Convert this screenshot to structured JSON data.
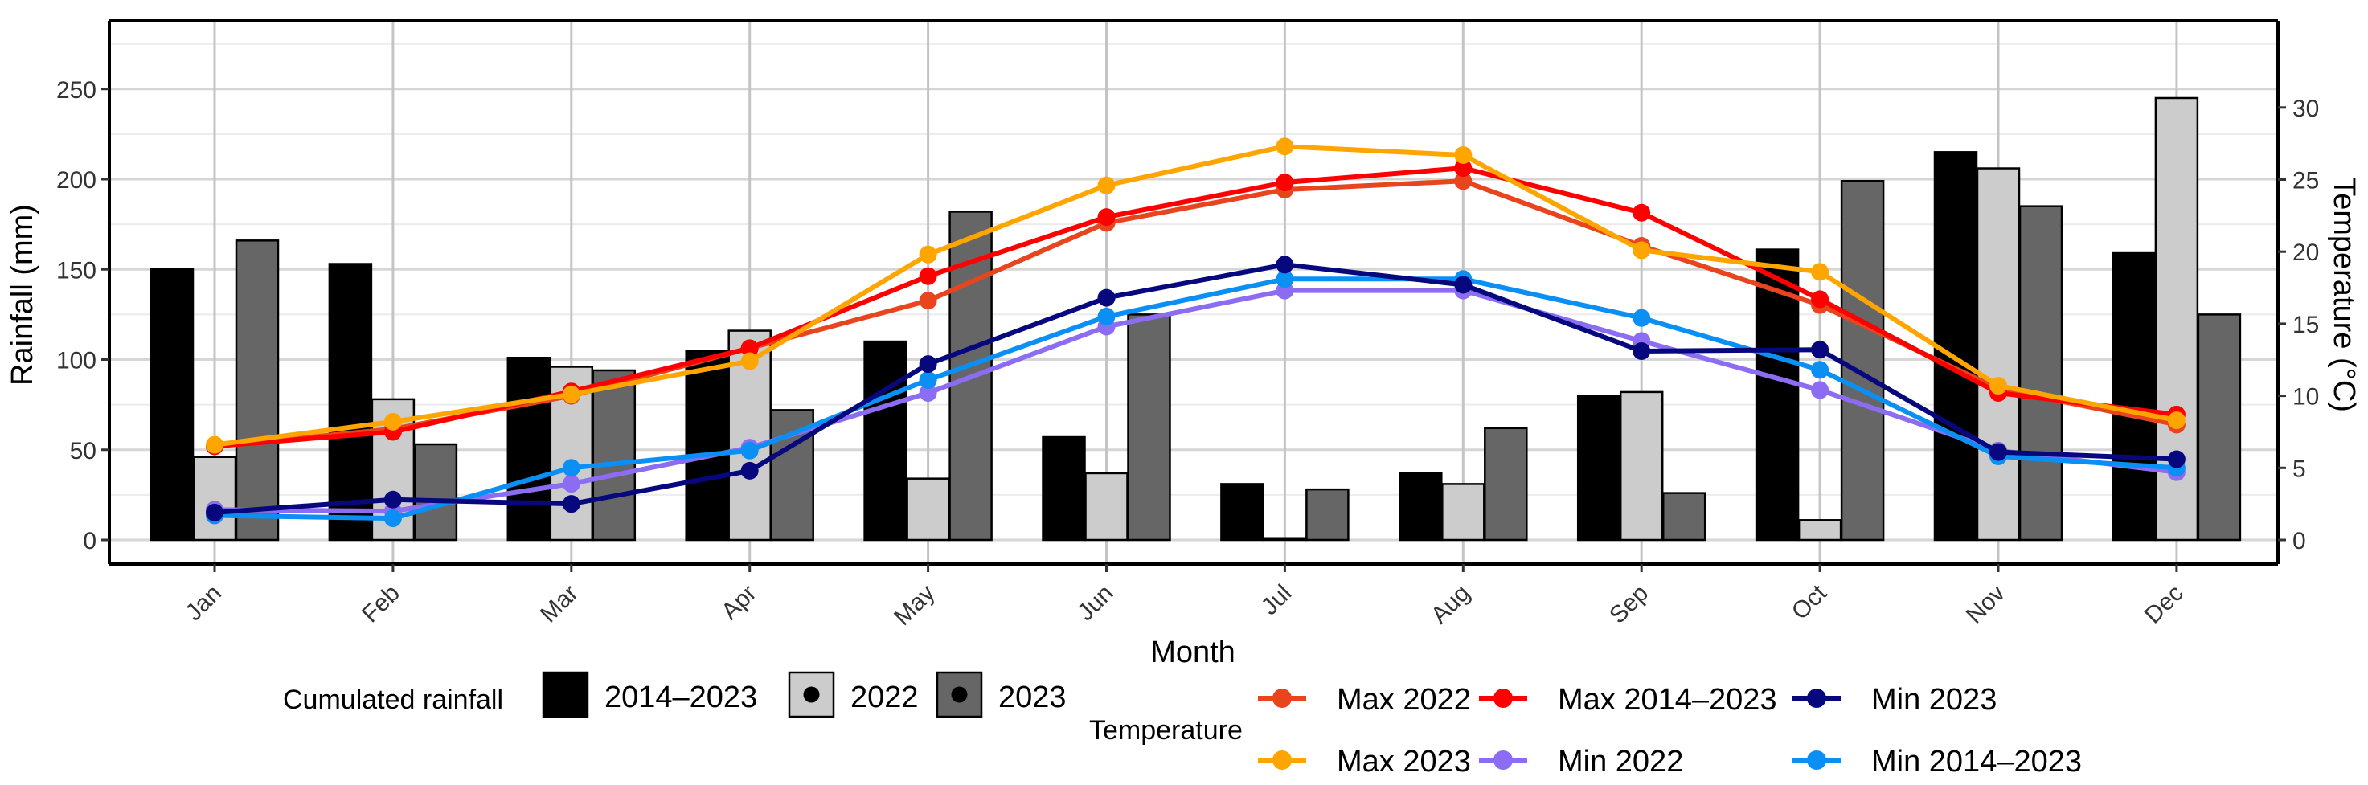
{
  "chart_data": {
    "type": "bar",
    "title": "",
    "xlabel": "Month",
    "ylabel": "Rainfall (mm)",
    "y2label": "Temperature (°C)",
    "categories": [
      "Jan",
      "Feb",
      "Mar",
      "Apr",
      "May",
      "Jun",
      "Jul",
      "Aug",
      "Sep",
      "Oct",
      "Nov",
      "Dec"
    ],
    "ylim": [
      0,
      280
    ],
    "y_ticks": [
      0,
      50,
      100,
      150,
      200,
      250
    ],
    "y2lim": [
      0,
      35
    ],
    "y2_ticks": [
      0,
      5,
      10,
      15,
      20,
      25,
      30
    ],
    "grid": true,
    "bar_legend_title": "Cumulated rainfall",
    "line_legend_title": "Temperature",
    "bar_series": [
      {
        "name": "2014–2023",
        "color": "#000000",
        "values": [
          150,
          153,
          101,
          105,
          110,
          57,
          31,
          37,
          80,
          161,
          215,
          159
        ]
      },
      {
        "name": "2022",
        "color": "#cccccc",
        "values": [
          46,
          78,
          96,
          116,
          34,
          37,
          1,
          31,
          82,
          11,
          206,
          245
        ]
      },
      {
        "name": "2023",
        "color": "#666666",
        "values": [
          166,
          53,
          94,
          72,
          182,
          125,
          28,
          62,
          26,
          199,
          185,
          125
        ]
      }
    ],
    "line_series": [
      {
        "name": "Max 2022",
        "color": "#e8451e",
        "values": [
          6.5,
          7.7,
          10.0,
          13.3,
          16.6,
          22.0,
          24.3,
          24.9,
          20.4,
          16.3,
          10.5,
          8.0
        ]
      },
      {
        "name": "Max 2014–2023",
        "color": "#ff0000",
        "values": [
          6.5,
          7.5,
          10.3,
          13.3,
          18.3,
          22.4,
          24.8,
          25.8,
          22.7,
          16.7,
          10.2,
          8.7
        ]
      },
      {
        "name": "Min 2023",
        "color": "#08087e",
        "values": [
          1.9,
          2.8,
          2.5,
          4.8,
          12.2,
          16.8,
          19.1,
          17.7,
          13.1,
          13.2,
          6.1,
          5.6
        ]
      },
      {
        "name": "Max 2023",
        "color": "#ffa500",
        "values": [
          6.6,
          8.2,
          10.1,
          12.4,
          19.8,
          24.6,
          27.3,
          26.7,
          20.1,
          18.6,
          10.7,
          8.3
        ]
      },
      {
        "name": "Min 2022",
        "color": "#8b6cf2",
        "values": [
          2.1,
          2.0,
          3.9,
          6.4,
          10.2,
          14.8,
          17.3,
          17.3,
          13.8,
          10.4,
          6.2,
          4.7
        ]
      },
      {
        "name": "Min 2014–2023",
        "color": "#0a8ff5",
        "values": [
          1.7,
          1.5,
          5.0,
          6.2,
          11.1,
          15.5,
          18.1,
          18.1,
          15.4,
          11.8,
          5.8,
          5.0
        ]
      }
    ],
    "legend_position": "bottom"
  }
}
